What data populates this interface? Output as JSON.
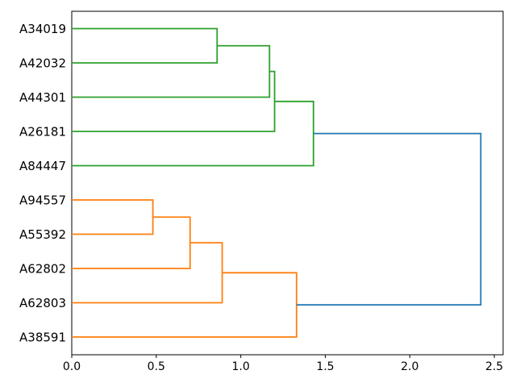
{
  "chart_data": {
    "type": "dendrogram",
    "title": "",
    "xlabel": "",
    "ylabel": "",
    "orientation": "left",
    "leaves": [
      "A34019",
      "A42032",
      "A44301",
      "A26181",
      "A84447",
      "A94557",
      "A55392",
      "A62802",
      "A62803",
      "A38591"
    ],
    "merges": [
      {
        "id": "G1",
        "a": "A34019",
        "b": "A42032",
        "dist": 0.86,
        "color_key": "green"
      },
      {
        "id": "G2",
        "a": "G1",
        "b": "A44301",
        "dist": 1.17,
        "color_key": "green"
      },
      {
        "id": "G3",
        "a": "G2",
        "b": "A26181",
        "dist": 1.2,
        "color_key": "green"
      },
      {
        "id": "G4",
        "a": "G3",
        "b": "A84447",
        "dist": 1.43,
        "color_key": "green"
      },
      {
        "id": "O1",
        "a": "A94557",
        "b": "A55392",
        "dist": 0.48,
        "color_key": "orange"
      },
      {
        "id": "O2",
        "a": "O1",
        "b": "A62802",
        "dist": 0.7,
        "color_key": "orange"
      },
      {
        "id": "O3",
        "a": "O2",
        "b": "A62803",
        "dist": 0.89,
        "color_key": "orange"
      },
      {
        "id": "O4",
        "a": "O3",
        "b": "A38591",
        "dist": 1.33,
        "color_key": "orange"
      },
      {
        "id": "R",
        "a": "G4",
        "b": "O4",
        "dist": 2.42,
        "color_key": "blue"
      }
    ],
    "x_ticks": [
      {
        "label": "0.0",
        "value": 0.0
      },
      {
        "label": "0.5",
        "value": 0.5
      },
      {
        "label": "1.0",
        "value": 1.0
      },
      {
        "label": "1.5",
        "value": 1.5
      },
      {
        "label": "2.0",
        "value": 2.0
      },
      {
        "label": "2.5",
        "value": 2.5
      }
    ],
    "xlim": [
      0,
      2.552
    ],
    "grid": false,
    "legend": null,
    "colors": {
      "green": "#2ca02c",
      "orange": "#ff7f0e",
      "blue": "#1f77b4",
      "spine": "#000000",
      "text": "#000000",
      "background": "#ffffff"
    }
  }
}
